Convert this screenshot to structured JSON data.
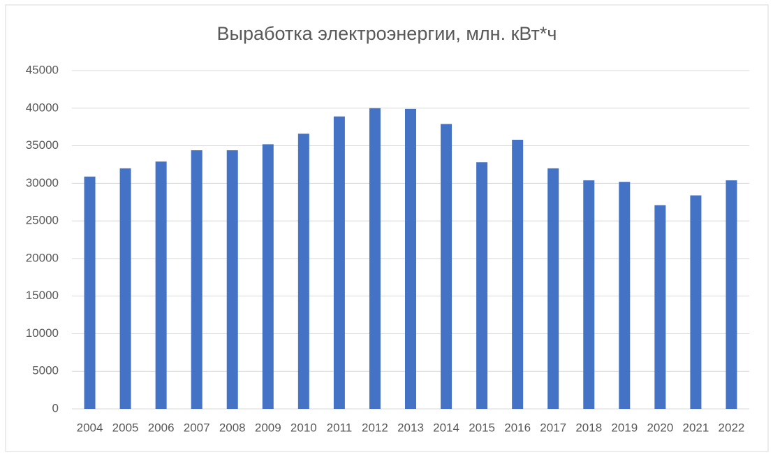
{
  "chart_data": {
    "type": "bar",
    "title": "Выработка электроэнергии, млн. кВт*ч",
    "categories": [
      "2004",
      "2005",
      "2006",
      "2007",
      "2008",
      "2009",
      "2010",
      "2011",
      "2012",
      "2013",
      "2014",
      "2015",
      "2016",
      "2017",
      "2018",
      "2019",
      "2020",
      "2021",
      "2022"
    ],
    "values": [
      30900,
      32000,
      32900,
      34400,
      34400,
      35200,
      36600,
      38900,
      40000,
      39900,
      37900,
      32800,
      35800,
      32000,
      30400,
      30200,
      27100,
      28400,
      30400
    ],
    "color": "#4472c4",
    "ylim": [
      0,
      45000
    ],
    "yticks": [
      0,
      5000,
      10000,
      15000,
      20000,
      25000,
      30000,
      35000,
      40000,
      45000
    ],
    "grid": true
  }
}
